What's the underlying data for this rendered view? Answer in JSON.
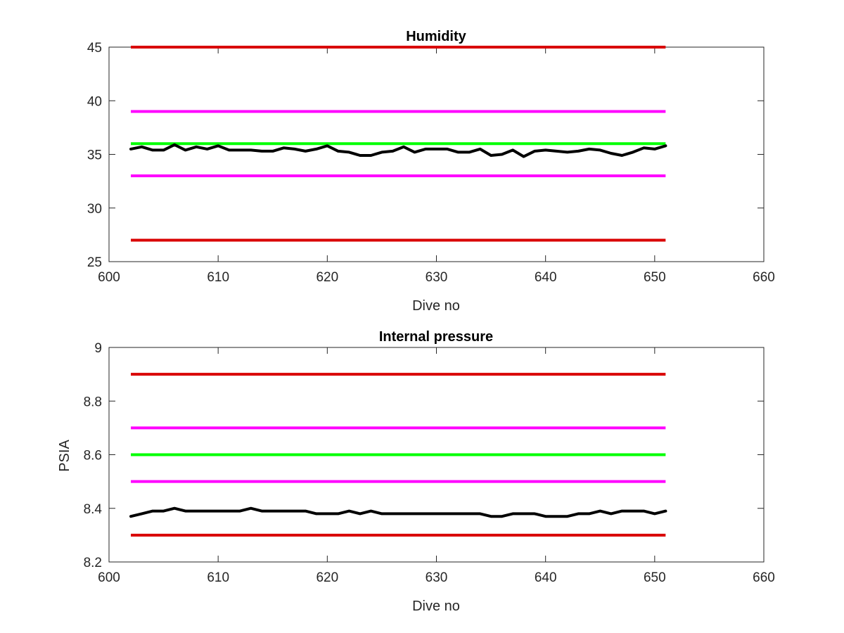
{
  "chart_data": [
    {
      "type": "line",
      "title": "Humidity",
      "xlabel": "Dive no",
      "ylabel": "",
      "xlim": [
        600,
        660
      ],
      "ylim": [
        25,
        45
      ],
      "xticks": [
        "600",
        "610",
        "620",
        "630",
        "640",
        "650",
        "660"
      ],
      "yticks": [
        "25",
        "30",
        "35",
        "40",
        "45"
      ],
      "grid": false,
      "legend": "none",
      "threshold_lines": [
        {
          "y": 45,
          "x": [
            602,
            651
          ],
          "color": "#d90000"
        },
        {
          "y": 39,
          "x": [
            602,
            651
          ],
          "color": "#ff00ff"
        },
        {
          "y": 36,
          "x": [
            602,
            651
          ],
          "color": "#00ff00"
        },
        {
          "y": 33,
          "x": [
            602,
            651
          ],
          "color": "#ff00ff"
        },
        {
          "y": 27,
          "x": [
            602,
            651
          ],
          "color": "#d90000"
        }
      ],
      "series": [
        {
          "color": "#000000",
          "x": [
            602,
            603,
            604,
            605,
            606,
            607,
            608,
            609,
            610,
            611,
            612,
            613,
            614,
            615,
            616,
            617,
            618,
            619,
            620,
            621,
            622,
            623,
            624,
            625,
            626,
            627,
            628,
            629,
            630,
            631,
            632,
            633,
            634,
            635,
            636,
            637,
            638,
            639,
            640,
            641,
            642,
            643,
            644,
            645,
            646,
            647,
            648,
            649,
            650,
            651
          ],
          "values": [
            35.5,
            35.7,
            35.4,
            35.4,
            35.9,
            35.4,
            35.7,
            35.5,
            35.8,
            35.4,
            35.4,
            35.4,
            35.3,
            35.3,
            35.6,
            35.5,
            35.3,
            35.5,
            35.8,
            35.3,
            35.2,
            34.9,
            34.9,
            35.2,
            35.3,
            35.7,
            35.2,
            35.5,
            35.5,
            35.5,
            35.2,
            35.2,
            35.5,
            34.9,
            35.0,
            35.4,
            34.8,
            35.3,
            35.4,
            35.3,
            35.2,
            35.3,
            35.5,
            35.4,
            35.1,
            34.9,
            35.2,
            35.6,
            35.5,
            35.8
          ]
        }
      ]
    },
    {
      "type": "line",
      "title": "Internal pressure",
      "xlabel": "Dive no",
      "ylabel": "PSIA",
      "xlim": [
        600,
        660
      ],
      "ylim": [
        8.2,
        9
      ],
      "xticks": [
        "600",
        "610",
        "620",
        "630",
        "640",
        "650",
        "660"
      ],
      "yticks": [
        "8.2",
        "8.4",
        "8.6",
        "8.8",
        "9"
      ],
      "grid": false,
      "legend": "none",
      "threshold_lines": [
        {
          "y": 8.9,
          "x": [
            602,
            651
          ],
          "color": "#d90000"
        },
        {
          "y": 8.7,
          "x": [
            602,
            651
          ],
          "color": "#ff00ff"
        },
        {
          "y": 8.6,
          "x": [
            602,
            651
          ],
          "color": "#00ff00"
        },
        {
          "y": 8.5,
          "x": [
            602,
            651
          ],
          "color": "#ff00ff"
        },
        {
          "y": 8.3,
          "x": [
            602,
            651
          ],
          "color": "#d90000"
        }
      ],
      "series": [
        {
          "color": "#000000",
          "x": [
            602,
            603,
            604,
            605,
            606,
            607,
            608,
            609,
            610,
            611,
            612,
            613,
            614,
            615,
            616,
            617,
            618,
            619,
            620,
            621,
            622,
            623,
            624,
            625,
            626,
            627,
            628,
            629,
            630,
            631,
            632,
            633,
            634,
            635,
            636,
            637,
            638,
            639,
            640,
            641,
            642,
            643,
            644,
            645,
            646,
            647,
            648,
            649,
            650,
            651
          ],
          "values": [
            8.37,
            8.38,
            8.39,
            8.39,
            8.4,
            8.39,
            8.39,
            8.39,
            8.39,
            8.39,
            8.39,
            8.4,
            8.39,
            8.39,
            8.39,
            8.39,
            8.39,
            8.38,
            8.38,
            8.38,
            8.39,
            8.38,
            8.39,
            8.38,
            8.38,
            8.38,
            8.38,
            8.38,
            8.38,
            8.38,
            8.38,
            8.38,
            8.38,
            8.37,
            8.37,
            8.38,
            8.38,
            8.38,
            8.37,
            8.37,
            8.37,
            8.38,
            8.38,
            8.39,
            8.38,
            8.39,
            8.39,
            8.39,
            8.38,
            8.39
          ]
        }
      ]
    }
  ]
}
